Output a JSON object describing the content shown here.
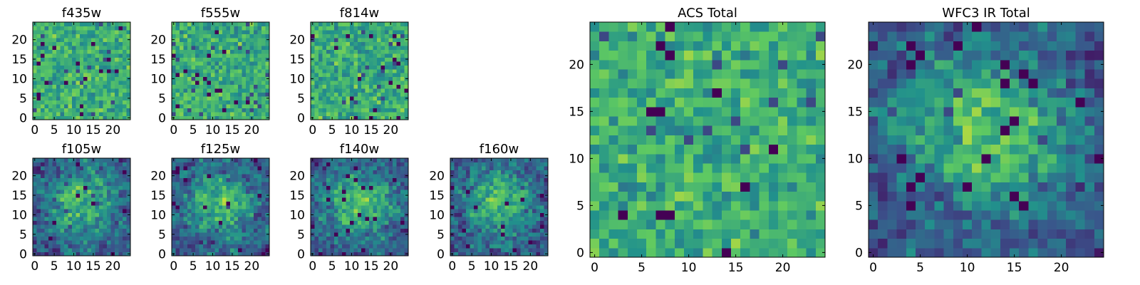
{
  "figure": {
    "panels": [
      "f435w",
      "f555w",
      "f814w",
      "f105w",
      "f125w",
      "f140w",
      "f160w",
      "ACS Total",
      "WFC3 IR Total"
    ]
  },
  "chart_data": [
    {
      "type": "heatmap",
      "title": "f435w",
      "size": 25,
      "xlim": [
        -0.5,
        24.5
      ],
      "ylim": [
        -0.5,
        24.5
      ],
      "xticks": [
        "0",
        "5",
        "10",
        "15",
        "20"
      ],
      "yticks": [
        "0",
        "5",
        "10",
        "15",
        "20"
      ],
      "colormap": [
        "#440154",
        "#3b528b",
        "#21918c",
        "#5ec962",
        "#fde725"
      ],
      "structure": "noise"
    },
    {
      "type": "heatmap",
      "title": "f555w",
      "size": 25,
      "xlim": [
        -0.5,
        24.5
      ],
      "ylim": [
        -0.5,
        24.5
      ],
      "xticks": [
        "0",
        "5",
        "10",
        "15",
        "20"
      ],
      "yticks": [
        "0",
        "5",
        "10",
        "15",
        "20"
      ],
      "colormap": [
        "#440154",
        "#3b528b",
        "#21918c",
        "#5ec962",
        "#fde725"
      ],
      "structure": "noise"
    },
    {
      "type": "heatmap",
      "title": "f814w",
      "size": 25,
      "xlim": [
        -0.5,
        24.5
      ],
      "ylim": [
        -0.5,
        24.5
      ],
      "xticks": [
        "0",
        "5",
        "10",
        "15",
        "20"
      ],
      "yticks": [
        "0",
        "5",
        "10",
        "15",
        "20"
      ],
      "colormap": [
        "#440154",
        "#3b528b",
        "#21918c",
        "#5ec962",
        "#fde725"
      ],
      "structure": "noise"
    },
    {
      "type": "heatmap",
      "title": "f105w",
      "size": 25,
      "xlim": [
        -0.5,
        24.5
      ],
      "ylim": [
        -0.5,
        24.5
      ],
      "xticks": [
        "0",
        "5",
        "10",
        "15",
        "20"
      ],
      "yticks": [
        "0",
        "5",
        "10",
        "15",
        "20"
      ],
      "colormap": [
        "#440154",
        "#3b528b",
        "#21918c",
        "#5ec962",
        "#fde725"
      ],
      "structure": "central source"
    },
    {
      "type": "heatmap",
      "title": "f125w",
      "size": 25,
      "xlim": [
        -0.5,
        24.5
      ],
      "ylim": [
        -0.5,
        24.5
      ],
      "xticks": [
        "0",
        "5",
        "10",
        "15",
        "20"
      ],
      "yticks": [
        "0",
        "5",
        "10",
        "15",
        "20"
      ],
      "colormap": [
        "#440154",
        "#3b528b",
        "#21918c",
        "#5ec962",
        "#fde725"
      ],
      "structure": "central source"
    },
    {
      "type": "heatmap",
      "title": "f140w",
      "size": 25,
      "xlim": [
        -0.5,
        24.5
      ],
      "ylim": [
        -0.5,
        24.5
      ],
      "xticks": [
        "0",
        "5",
        "10",
        "15",
        "20"
      ],
      "yticks": [
        "0",
        "5",
        "10",
        "15",
        "20"
      ],
      "colormap": [
        "#440154",
        "#3b528b",
        "#21918c",
        "#5ec962",
        "#fde725"
      ],
      "structure": "central source"
    },
    {
      "type": "heatmap",
      "title": "f160w",
      "size": 25,
      "xlim": [
        -0.5,
        24.5
      ],
      "ylim": [
        -0.5,
        24.5
      ],
      "xticks": [
        "0",
        "5",
        "10",
        "15",
        "20"
      ],
      "yticks": [
        "0",
        "5",
        "10",
        "15",
        "20"
      ],
      "colormap": [
        "#440154",
        "#3b528b",
        "#21918c",
        "#5ec962",
        "#fde725"
      ],
      "structure": "central source"
    },
    {
      "type": "heatmap",
      "title": "ACS Total",
      "size": 25,
      "xlim": [
        -0.5,
        24.5
      ],
      "ylim": [
        -0.5,
        24.5
      ],
      "xticks": [
        "0",
        "5",
        "10",
        "15",
        "20"
      ],
      "yticks": [
        "0",
        "5",
        "10",
        "15",
        "20"
      ],
      "colormap": [
        "#440154",
        "#3b528b",
        "#21918c",
        "#5ec962",
        "#fde725"
      ],
      "structure": "noise"
    },
    {
      "type": "heatmap",
      "title": "WFC3 IR Total",
      "size": 25,
      "xlim": [
        -0.5,
        24.5
      ],
      "ylim": [
        -0.5,
        24.5
      ],
      "xticks": [
        "0",
        "5",
        "10",
        "15",
        "20"
      ],
      "yticks": [
        "0",
        "5",
        "10",
        "15",
        "20"
      ],
      "colormap": [
        "#440154",
        "#3b528b",
        "#21918c",
        "#5ec962",
        "#fde725"
      ],
      "structure": "central source"
    }
  ]
}
